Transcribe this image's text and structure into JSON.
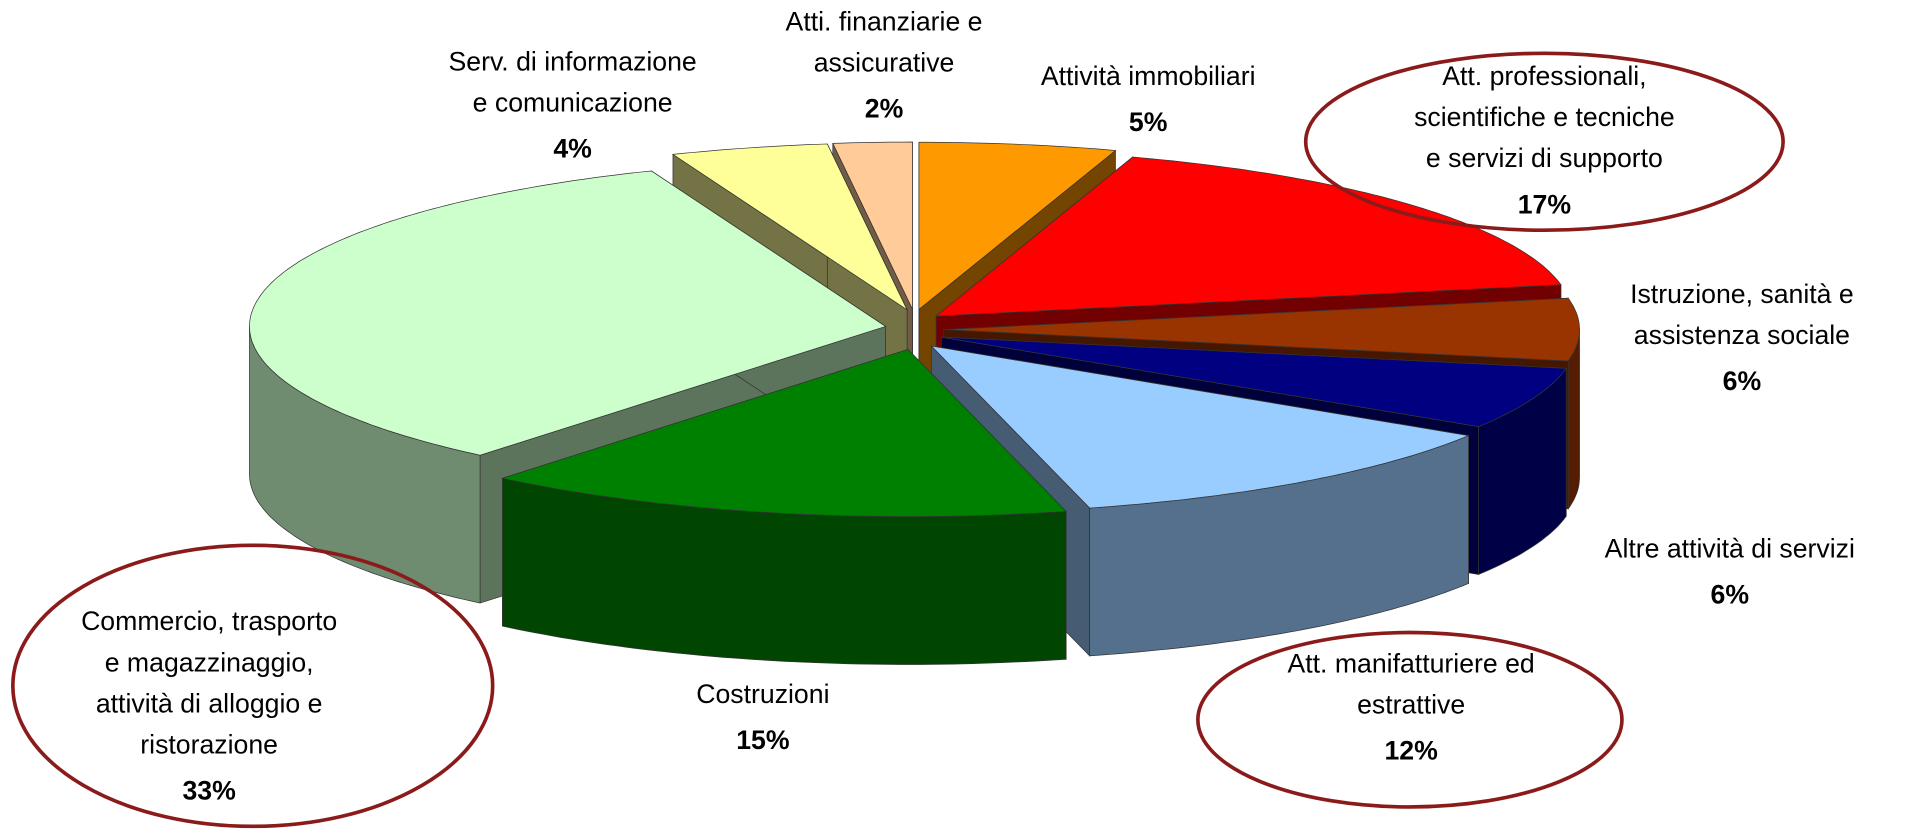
{
  "chart_data": {
    "type": "pie3d",
    "categories": [
      "Attività immobiliari",
      "Att. professionali,\nscientifiche e tecniche\ne servizi di supporto",
      "Istruzione, sanità e\nassistenza sociale",
      "Altre attività di servizi",
      "Att. manifatturiere ed\nestrattive",
      "Costruzioni",
      "Commercio, trasporto\ne magazzinaggio,\nattività di alloggio e\nristorazione",
      "Serv. di informazione\ne comunicazione",
      "Atti. finanziarie e\nassicurative"
    ],
    "values": [
      5,
      17,
      6,
      6,
      12,
      15,
      33,
      4,
      2
    ],
    "value_labels": [
      "5%",
      "17%",
      "6%",
      "6%",
      "12%",
      "15%",
      "33%",
      "4%",
      "2%"
    ],
    "colors": [
      "#ff9900",
      "#ff0000",
      "#993300",
      "#000080",
      "#99ccff",
      "#008000",
      "#ccffcc",
      "#ffff99",
      "#ffcc99"
    ]
  }
}
